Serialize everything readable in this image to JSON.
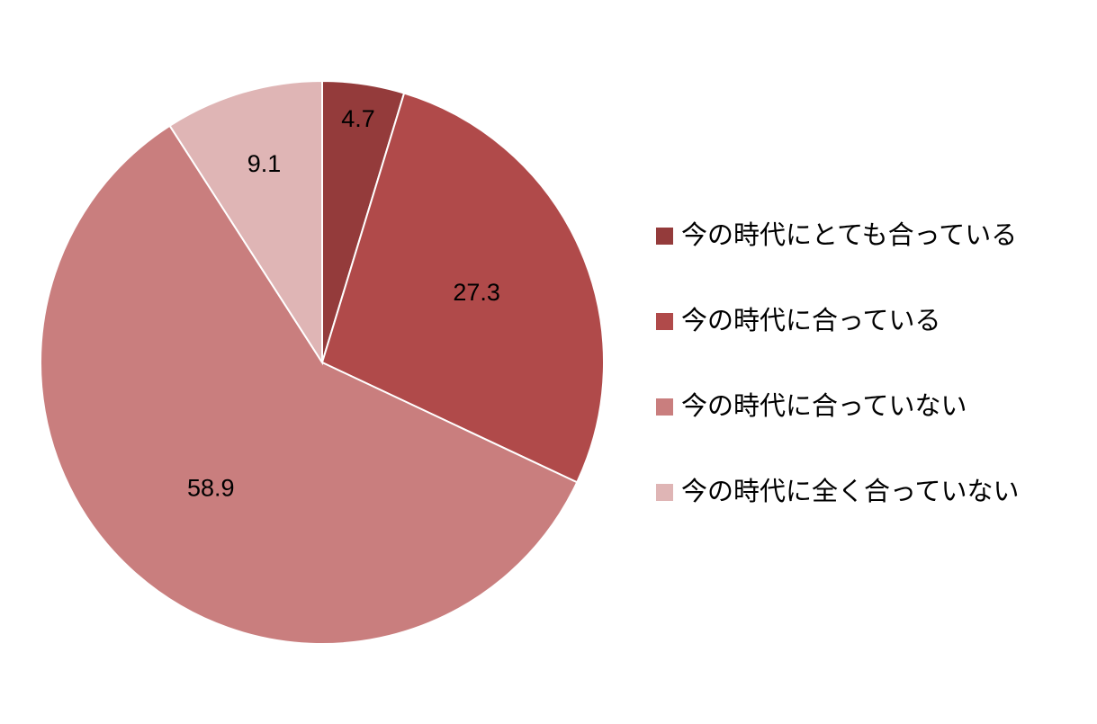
{
  "chart_data": {
    "type": "pie",
    "categories": [
      "今の時代にとても合っている",
      "今の時代に合っている",
      "今の時代に合っていない",
      "今の時代に全く合っていない"
    ],
    "values": [
      4.7,
      27.3,
      58.9,
      9.1
    ],
    "colors": [
      "#943b3b",
      "#b04a4a",
      "#c97e7e",
      "#dfb5b5"
    ],
    "legend": "right"
  }
}
